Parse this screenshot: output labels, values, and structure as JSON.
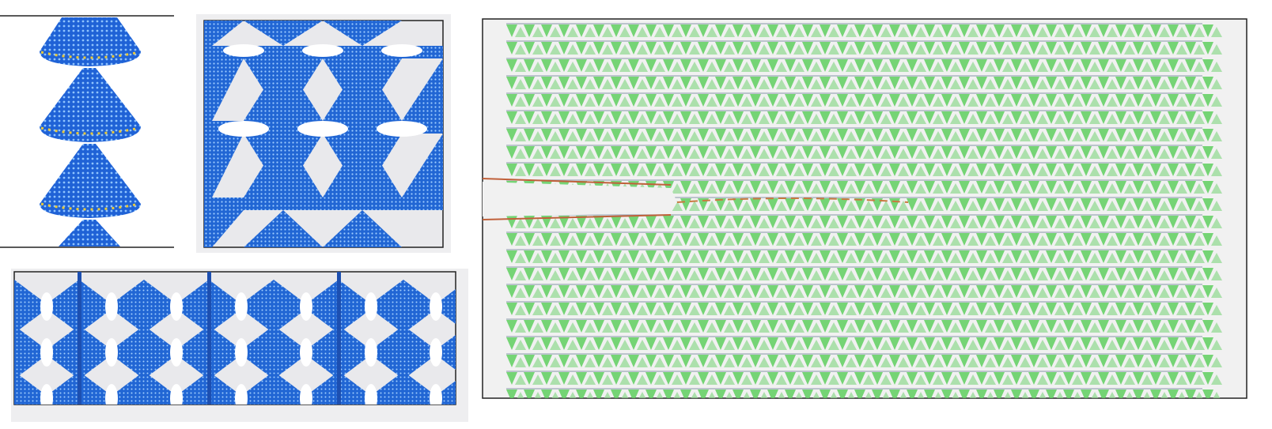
{
  "figure": {
    "panels": [
      {
        "id": "a",
        "description_name": "single-column-cone-stack",
        "colors": {
          "mesh": "#1e5fd8",
          "highlight": "#f2d23a",
          "background": "#ffffff"
        }
      },
      {
        "id": "b",
        "description_name": "cone-lattice-unit",
        "colors": {
          "mesh": "#1e6fd8",
          "background": "#e9e9ec"
        }
      },
      {
        "id": "c",
        "description_name": "rotated-cone-lattice-strip",
        "colors": {
          "mesh": "#1e6fd8",
          "background": "#e9e9ec"
        }
      },
      {
        "id": "d",
        "description_name": "cracked-lattice-sheet",
        "colors": {
          "cone": "#5fcf5f",
          "strut": "#7a8aa0",
          "crack_tint": "#d06030",
          "background": "#f2f2f2"
        }
      }
    ]
  }
}
